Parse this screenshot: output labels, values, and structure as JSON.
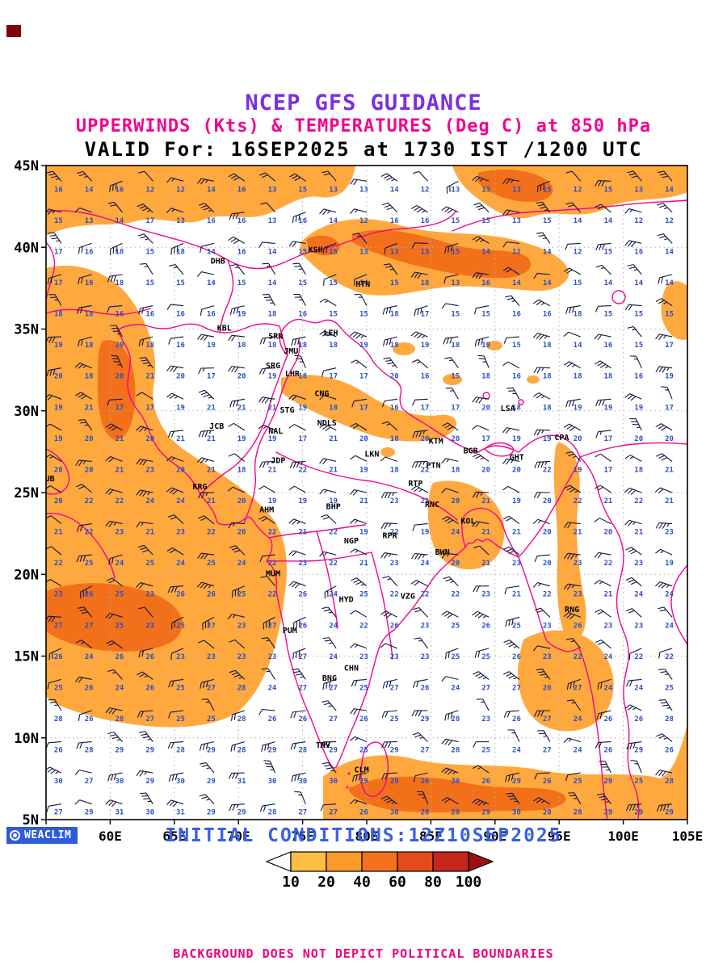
{
  "corner_mark": {
    "color": "#7E0308"
  },
  "header": {
    "line1": {
      "text": "NCEP GFS GUIDANCE",
      "color": "#7B2FE0"
    },
    "line2": {
      "text": "UPPERWINDS (Kts) & TEMPERATURES (Deg C) at 850 hPa",
      "color": "#F2058C"
    },
    "line3": {
      "text": "VALID For: 16SEP2025 at 1730 IST /1200 UTC",
      "color": "#000000"
    }
  },
  "map": {
    "extent": {
      "lon_min": 55,
      "lon_max": 105,
      "lat_min": 5,
      "lat_max": 45
    },
    "lat_ticks": [
      {
        "label": "45N",
        "value": 45
      },
      {
        "label": "40N",
        "value": 40
      },
      {
        "label": "35N",
        "value": 35
      },
      {
        "label": "30N",
        "value": 30
      },
      {
        "label": "25N",
        "value": 25
      },
      {
        "label": "20N",
        "value": 20
      },
      {
        "label": "15N",
        "value": 15
      },
      {
        "label": "10N",
        "value": 10
      },
      {
        "label": "5N",
        "value": 5
      }
    ],
    "lon_ticks": [
      {
        "label": "55E",
        "value": 55
      },
      {
        "label": "60E",
        "value": 60
      },
      {
        "label": "65E",
        "value": 65
      },
      {
        "label": "70E",
        "value": 70
      },
      {
        "label": "75E",
        "value": 75
      },
      {
        "label": "80E",
        "value": 80
      },
      {
        "label": "85E",
        "value": 85
      },
      {
        "label": "90E",
        "value": 90
      },
      {
        "label": "95E",
        "value": 95
      },
      {
        "label": "100E",
        "value": 100
      },
      {
        "label": "105E",
        "value": 105
      }
    ],
    "boundary_color": "#F2058C",
    "grid_color": "#B0B0B0",
    "barb_color": "#14143C",
    "temp_color": "#2B50C8",
    "shade_light": "#FFA83E",
    "shade_dark": "#F3701B",
    "stations": [
      {
        "code": "DHB",
        "lon": 68.4,
        "lat": 39.0
      },
      {
        "code": "KSH",
        "lon": 76.0,
        "lat": 39.7
      },
      {
        "code": "HTN",
        "lon": 79.7,
        "lat": 37.6
      },
      {
        "code": "KBL",
        "lon": 68.9,
        "lat": 34.9
      },
      {
        "code": "SRN",
        "lon": 72.9,
        "lat": 34.4
      },
      {
        "code": "LEH",
        "lon": 77.2,
        "lat": 34.6
      },
      {
        "code": "JMU",
        "lon": 74.1,
        "lat": 33.5
      },
      {
        "code": "SRG",
        "lon": 72.7,
        "lat": 32.6
      },
      {
        "code": "LHR",
        "lon": 74.2,
        "lat": 32.1
      },
      {
        "code": "CNG",
        "lon": 76.5,
        "lat": 30.9
      },
      {
        "code": "STG",
        "lon": 73.8,
        "lat": 29.9
      },
      {
        "code": "NDLS",
        "lon": 76.9,
        "lat": 29.1
      },
      {
        "code": "JCB",
        "lon": 68.3,
        "lat": 28.9
      },
      {
        "code": "NAL",
        "lon": 72.9,
        "lat": 28.6
      },
      {
        "code": "LSA",
        "lon": 91.0,
        "lat": 30.0
      },
      {
        "code": "KTM",
        "lon": 85.4,
        "lat": 28.0
      },
      {
        "code": "BGB",
        "lon": 88.1,
        "lat": 27.4
      },
      {
        "code": "CPA",
        "lon": 95.2,
        "lat": 28.2
      },
      {
        "code": "GHT",
        "lon": 91.7,
        "lat": 27.0
      },
      {
        "code": "LKN",
        "lon": 80.4,
        "lat": 27.2
      },
      {
        "code": "PTN",
        "lon": 85.2,
        "lat": 26.5
      },
      {
        "code": "JDP",
        "lon": 73.1,
        "lat": 26.8
      },
      {
        "code": "DUB",
        "lon": 55.1,
        "lat": 25.7
      },
      {
        "code": "KRG",
        "lon": 67.0,
        "lat": 25.2
      },
      {
        "code": "RTP",
        "lon": 83.8,
        "lat": 25.4
      },
      {
        "code": "AHM",
        "lon": 72.2,
        "lat": 23.8
      },
      {
        "code": "BHP",
        "lon": 77.4,
        "lat": 24.0
      },
      {
        "code": "RNC",
        "lon": 85.1,
        "lat": 24.1
      },
      {
        "code": "KOL",
        "lon": 87.9,
        "lat": 23.1
      },
      {
        "code": "NGP",
        "lon": 78.8,
        "lat": 21.9
      },
      {
        "code": "RPR",
        "lon": 81.8,
        "lat": 22.2
      },
      {
        "code": "BWN",
        "lon": 85.9,
        "lat": 21.2
      },
      {
        "code": "MUM",
        "lon": 72.7,
        "lat": 19.9
      },
      {
        "code": "HYD",
        "lon": 78.4,
        "lat": 18.3
      },
      {
        "code": "VZG",
        "lon": 83.2,
        "lat": 18.5
      },
      {
        "code": "RNG",
        "lon": 96.0,
        "lat": 17.7
      },
      {
        "code": "PUM",
        "lon": 74.0,
        "lat": 16.4
      },
      {
        "code": "CHN",
        "lon": 78.8,
        "lat": 14.1
      },
      {
        "code": "BNG",
        "lon": 77.1,
        "lat": 13.5
      },
      {
        "code": "TRV",
        "lon": 76.6,
        "lat": 9.4
      },
      {
        "code": "CLM",
        "lon": 79.6,
        "lat": 7.9
      }
    ]
  },
  "wind_field": {
    "cols": 21,
    "rows": 21,
    "temp_base": 30,
    "lat_lapse": 0.4,
    "lon_lapse": 0.04,
    "jitter": 5,
    "min": 12,
    "max": 33
  },
  "colorbar": {
    "values": [
      "10",
      "20",
      "40",
      "60",
      "80",
      "100"
    ],
    "segment_colors": [
      "#FCBE44",
      "#FB9A28",
      "#F4711E",
      "#E44A1C",
      "#C6261B"
    ],
    "below_color": "#FFFFFF",
    "above_color": "#9A1013"
  },
  "footer": {
    "initial_conditions": {
      "text": "INITIAL CONDITIONS:12Z10SEP2025",
      "color": "#3A5FE8"
    },
    "weaclim": {
      "label": "WEACLIM",
      "bg": "#2E5BD7"
    },
    "disclaimer": {
      "text": "BACKGROUND DOES NOT DEPICT POLITICAL BOUNDARIES",
      "color": "#E8007D"
    }
  }
}
